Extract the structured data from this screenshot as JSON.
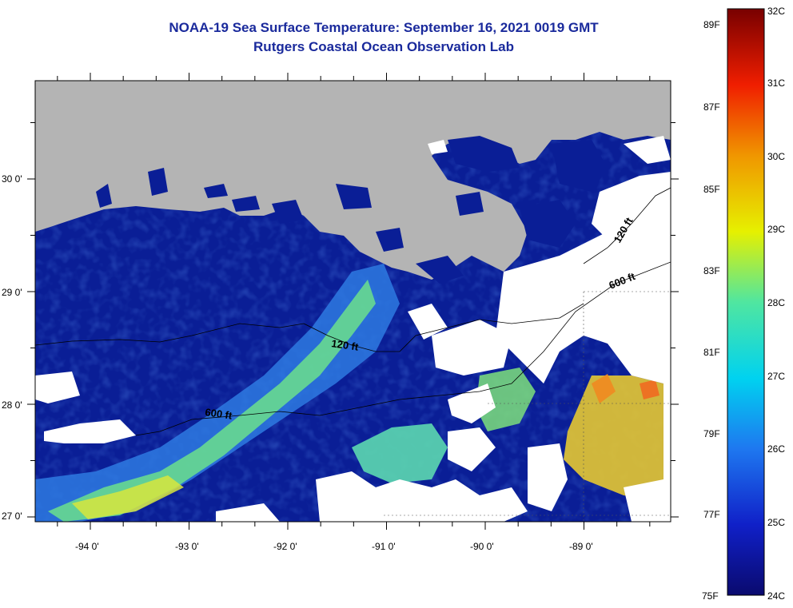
{
  "header": {
    "title": "NOAA-19 Sea Surface Temperature:  September 16, 2021 0019 GMT",
    "subtitle": "Rutgers Coastal Ocean Observation Lab"
  },
  "axes": {
    "lon_labels": [
      "-94 0'",
      "-93 0'",
      "-92 0'",
      "-91 0'",
      "-90 0'",
      "-89 0'"
    ],
    "lat_labels": [
      "30 0'",
      "29 0'",
      "28 0'",
      "27 0'"
    ]
  },
  "contours": [
    {
      "label": "600 ft"
    },
    {
      "label": "120 ft"
    },
    {
      "label": "600 ft"
    },
    {
      "label": "120 ft"
    }
  ],
  "colorbar": {
    "fahrenheit": [
      "89F",
      "87F",
      "85F",
      "83F",
      "81F",
      "79F",
      "77F",
      "75F"
    ],
    "celsius": [
      "32C",
      "31C",
      "30C",
      "29C",
      "28C",
      "27C",
      "26C",
      "25C",
      "24C"
    ]
  },
  "colors": {
    "land": "#b4b4b4",
    "water_base": "#0a1e96",
    "cloud": "#ffffff",
    "title": "#1a2a9c"
  }
}
